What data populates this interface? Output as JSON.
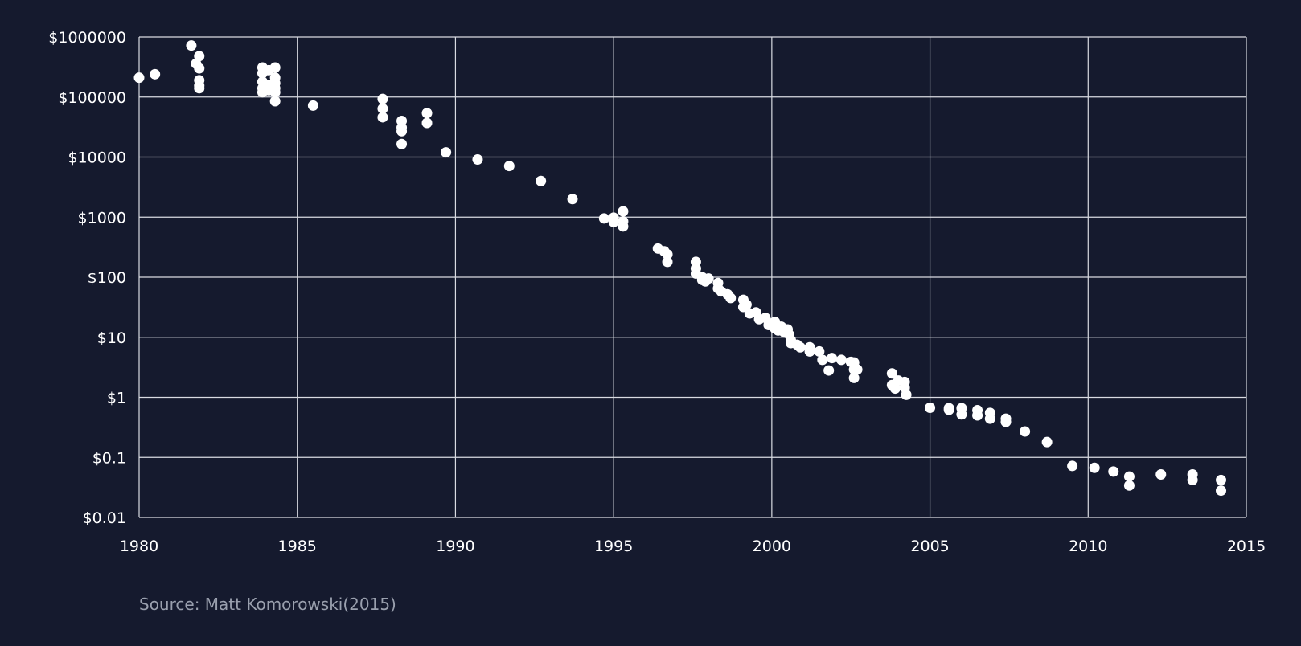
{
  "source": "Source: Matt Komorowski(2015)",
  "colors": {
    "background": "#151a2e",
    "grid": "#d9dbe2",
    "point": "#ffffff",
    "text": "#ffffff",
    "source": "#9aa0ae"
  },
  "chart_data": {
    "type": "scatter",
    "title": "",
    "xlabel": "",
    "ylabel": "",
    "xlim": [
      1980,
      2015
    ],
    "ylim": [
      0.01,
      1000000
    ],
    "yscale": "log",
    "grid": true,
    "x_ticks": [
      "1980",
      "1985",
      "1990",
      "1995",
      "2000",
      "2005",
      "2010",
      "2015"
    ],
    "y_ticks": [
      "$1000000",
      "$100000",
      "$10000",
      "$1000",
      "$100",
      "$10",
      "$1",
      "$0.1",
      "$0.01"
    ],
    "points": [
      [
        1980.0,
        210000
      ],
      [
        1980.5,
        240000
      ],
      [
        1981.65,
        720000
      ],
      [
        1981.8,
        360000
      ],
      [
        1981.9,
        480000
      ],
      [
        1981.9,
        300000
      ],
      [
        1981.9,
        190000
      ],
      [
        1981.9,
        155000
      ],
      [
        1981.9,
        140000
      ],
      [
        1983.9,
        310000
      ],
      [
        1983.9,
        250000
      ],
      [
        1983.9,
        180000
      ],
      [
        1983.9,
        140000
      ],
      [
        1983.9,
        120000
      ],
      [
        1984.1,
        280000
      ],
      [
        1984.1,
        160000
      ],
      [
        1984.1,
        130000
      ],
      [
        1984.3,
        310000
      ],
      [
        1984.3,
        210000
      ],
      [
        1984.3,
        170000
      ],
      [
        1984.3,
        140000
      ],
      [
        1984.3,
        120000
      ],
      [
        1984.3,
        85000
      ],
      [
        1985.5,
        72000
      ],
      [
        1987.7,
        93000
      ],
      [
        1987.7,
        64000
      ],
      [
        1987.7,
        46000
      ],
      [
        1988.3,
        40000
      ],
      [
        1988.3,
        31000
      ],
      [
        1988.3,
        27000
      ],
      [
        1988.3,
        16500
      ],
      [
        1989.1,
        54000
      ],
      [
        1989.1,
        37000
      ],
      [
        1989.7,
        12000
      ],
      [
        1990.7,
        9100
      ],
      [
        1991.7,
        7100
      ],
      [
        1992.7,
        4000
      ],
      [
        1993.7,
        2000
      ],
      [
        1994.7,
        950
      ],
      [
        1995.0,
        980
      ],
      [
        1995.0,
        830
      ],
      [
        1995.3,
        1250
      ],
      [
        1995.3,
        850
      ],
      [
        1995.3,
        700
      ],
      [
        1996.4,
        300
      ],
      [
        1996.6,
        270
      ],
      [
        1996.7,
        240
      ],
      [
        1996.7,
        180
      ],
      [
        1997.6,
        180
      ],
      [
        1997.6,
        140
      ],
      [
        1997.6,
        115
      ],
      [
        1997.8,
        100
      ],
      [
        1997.8,
        90
      ],
      [
        1997.9,
        85
      ],
      [
        1998.0,
        95
      ],
      [
        1998.3,
        80
      ],
      [
        1998.3,
        65
      ],
      [
        1998.4,
        58
      ],
      [
        1998.6,
        52
      ],
      [
        1998.7,
        45
      ],
      [
        1999.1,
        42
      ],
      [
        1999.1,
        32
      ],
      [
        1999.2,
        35
      ],
      [
        1999.3,
        25
      ],
      [
        1999.5,
        26
      ],
      [
        1999.6,
        20
      ],
      [
        1999.8,
        21
      ],
      [
        1999.9,
        16
      ],
      [
        2000.0,
        17
      ],
      [
        2000.1,
        18
      ],
      [
        2000.1,
        14
      ],
      [
        2000.2,
        13
      ],
      [
        2000.3,
        15
      ],
      [
        2000.4,
        12
      ],
      [
        2000.5,
        13.5
      ],
      [
        2000.55,
        11
      ],
      [
        2000.6,
        9
      ],
      [
        2000.6,
        8
      ],
      [
        2000.8,
        7.5
      ],
      [
        2000.9,
        6.8
      ],
      [
        2001.2,
        6.8
      ],
      [
        2001.2,
        5.8
      ],
      [
        2001.5,
        5.8
      ],
      [
        2001.6,
        4.2
      ],
      [
        2001.8,
        2.8
      ],
      [
        2001.9,
        4.5
      ],
      [
        2002.2,
        4.2
      ],
      [
        2002.5,
        3.9
      ],
      [
        2002.6,
        3.8
      ],
      [
        2002.6,
        2.9
      ],
      [
        2002.6,
        2.1
      ],
      [
        2002.7,
        2.9
      ],
      [
        2003.8,
        2.5
      ],
      [
        2003.8,
        1.6
      ],
      [
        2003.9,
        1.4
      ],
      [
        2004.0,
        1.9
      ],
      [
        2004.2,
        1.8
      ],
      [
        2004.2,
        1.45
      ],
      [
        2004.25,
        1.1
      ],
      [
        2005.0,
        0.67
      ],
      [
        2005.6,
        0.66
      ],
      [
        2005.6,
        0.62
      ],
      [
        2006.0,
        0.66
      ],
      [
        2006.0,
        0.52
      ],
      [
        2006.5,
        0.61
      ],
      [
        2006.5,
        0.5
      ],
      [
        2006.9,
        0.55
      ],
      [
        2006.9,
        0.44
      ],
      [
        2007.4,
        0.44
      ],
      [
        2007.4,
        0.39
      ],
      [
        2008.0,
        0.27
      ],
      [
        2008.7,
        0.18
      ],
      [
        2009.5,
        0.072
      ],
      [
        2010.2,
        0.067
      ],
      [
        2010.8,
        0.058
      ],
      [
        2011.3,
        0.048
      ],
      [
        2011.3,
        0.034
      ],
      [
        2012.3,
        0.052
      ],
      [
        2013.3,
        0.052
      ],
      [
        2013.3,
        0.042
      ],
      [
        2014.2,
        0.042
      ],
      [
        2014.2,
        0.028
      ]
    ]
  }
}
